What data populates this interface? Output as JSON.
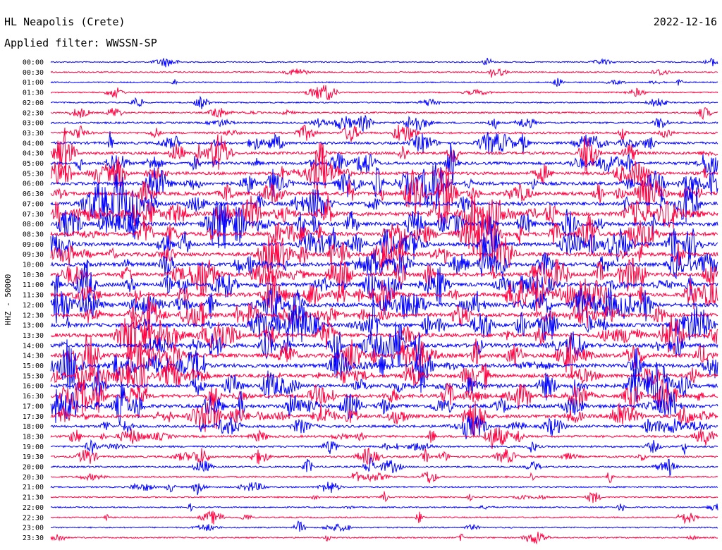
{
  "header": {
    "station": "HL Neapolis (Crete)",
    "date": "2022-12-16",
    "filter_label": "Applied filter: WWSSN-SP",
    "ylabel": "HHZ - 50000"
  },
  "colors": {
    "trace_a": "#0000ff",
    "trace_b": "#ff0040",
    "text": "#000000",
    "background": "#ffffff"
  },
  "chart_data": {
    "type": "line",
    "title": "HL Neapolis (Crete)",
    "date": "2022-12-16",
    "filter": "WWSSN-SP",
    "ylabel": "HHZ - 50000",
    "row_labels": [
      "00:00",
      "00:30",
      "01:00",
      "01:30",
      "02:00",
      "02:30",
      "03:00",
      "03:30",
      "04:00",
      "04:30",
      "05:00",
      "05:30",
      "06:00",
      "06:30",
      "07:00",
      "07:30",
      "08:00",
      "08:30",
      "09:00",
      "09:30",
      "10:00",
      "10:30",
      "11:00",
      "11:30",
      "12:00",
      "12:30",
      "13:00",
      "13:30",
      "14:00",
      "14:30",
      "15:00",
      "15:30",
      "16:00",
      "16:30",
      "17:00",
      "17:30",
      "18:00",
      "18:30",
      "19:00",
      "19:30",
      "20:00",
      "20:30",
      "21:00",
      "21:30",
      "22:00",
      "22:30",
      "23:00",
      "23:30"
    ],
    "series": [
      {
        "color": "#0000ff",
        "rows": "even"
      },
      {
        "color": "#ff0040",
        "rows": "odd"
      }
    ],
    "activity": [
      0.08,
      0.12,
      0.1,
      0.12,
      0.12,
      0.2,
      0.3,
      0.35,
      0.5,
      0.55,
      0.6,
      0.65,
      0.75,
      0.8,
      0.85,
      0.9,
      0.9,
      0.9,
      0.85,
      0.85,
      0.85,
      0.85,
      0.9,
      0.9,
      0.9,
      0.85,
      0.85,
      0.85,
      0.9,
      0.9,
      0.9,
      0.85,
      0.8,
      0.75,
      0.8,
      0.75,
      0.5,
      0.4,
      0.3,
      0.3,
      0.25,
      0.2,
      0.2,
      0.15,
      0.12,
      0.12,
      0.12,
      0.12
    ],
    "grid": false
  }
}
